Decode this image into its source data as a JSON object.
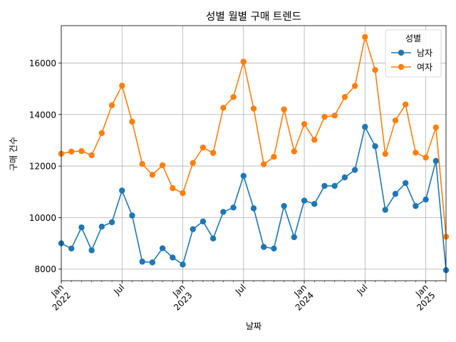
{
  "chart_data": {
    "type": "line",
    "title": "성별 월별 구매 트렌드",
    "xlabel": "날짜",
    "ylabel": "구매 건수",
    "ylim": [
      7550,
      17450
    ],
    "grid": true,
    "legend": {
      "title": "성별",
      "position": "top-right"
    },
    "x": [
      "2022-01",
      "2022-02",
      "2022-03",
      "2022-04",
      "2022-05",
      "2022-06",
      "2022-07",
      "2022-08",
      "2022-09",
      "2022-10",
      "2022-11",
      "2022-12",
      "2023-01",
      "2023-02",
      "2023-03",
      "2023-04",
      "2023-05",
      "2023-06",
      "2023-07",
      "2023-08",
      "2023-09",
      "2023-10",
      "2023-11",
      "2023-12",
      "2024-01",
      "2024-02",
      "2024-03",
      "2024-04",
      "2024-05",
      "2024-06",
      "2024-07",
      "2024-08",
      "2024-09",
      "2024-10",
      "2024-11",
      "2024-12",
      "2025-01",
      "2025-02",
      "2025-03"
    ],
    "x_ticks": [
      {
        "month": "2022-01",
        "label": "Jan",
        "sublabel": "2022"
      },
      {
        "month": "2022-07",
        "label": "Jul",
        "sublabel": ""
      },
      {
        "month": "2023-01",
        "label": "Jan",
        "sublabel": "2023"
      },
      {
        "month": "2023-07",
        "label": "Jul",
        "sublabel": ""
      },
      {
        "month": "2024-01",
        "label": "Jan",
        "sublabel": "2024"
      },
      {
        "month": "2024-07",
        "label": "Jul",
        "sublabel": ""
      },
      {
        "month": "2025-01",
        "label": "Jan",
        "sublabel": "2025"
      }
    ],
    "y_ticks": [
      8000,
      10000,
      12000,
      14000,
      16000
    ],
    "series": [
      {
        "name": "남자",
        "color": "#1f77b4",
        "values": [
          9000,
          8800,
          9620,
          8730,
          9650,
          9820,
          11050,
          10080,
          8290,
          8260,
          8810,
          8450,
          8180,
          9550,
          9850,
          9190,
          10220,
          10390,
          11620,
          10360,
          8860,
          8800,
          10450,
          9240,
          10660,
          10530,
          11230,
          11230,
          11560,
          11850,
          13520,
          12770,
          10300,
          10920,
          11340,
          10450,
          10700,
          12200,
          7960
        ]
      },
      {
        "name": "여자",
        "color": "#ff7f0e",
        "values": [
          12480,
          12560,
          12580,
          12420,
          13280,
          14360,
          15120,
          13720,
          12080,
          11660,
          12030,
          11140,
          10950,
          12120,
          12720,
          12510,
          14260,
          14680,
          16050,
          14230,
          12070,
          12360,
          14200,
          12570,
          13630,
          13020,
          13910,
          13960,
          14680,
          15110,
          17010,
          15730,
          12470,
          13770,
          14390,
          12520,
          12330,
          13500,
          9260
        ]
      }
    ]
  }
}
